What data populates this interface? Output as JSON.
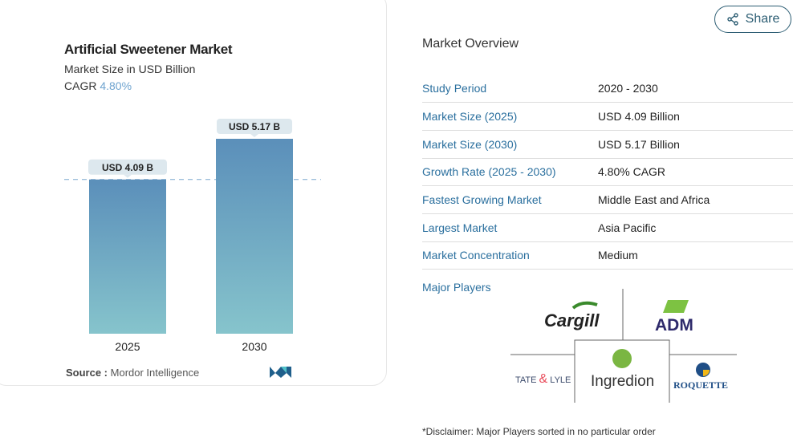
{
  "chart_data": {
    "type": "bar",
    "title": "Artificial Sweetener Market",
    "subtitle": "Market Size in USD Billion",
    "cagr_label": "CAGR",
    "cagr_value": "4.80%",
    "categories": [
      "2025",
      "2030"
    ],
    "values": [
      4.09,
      5.17
    ],
    "data_labels": [
      "USD 4.09 B",
      "USD 5.17 B"
    ],
    "ylim": [
      0,
      5.17
    ],
    "grid": false,
    "reference_line": "dashed at 2025 value"
  },
  "source": {
    "label": "Source :",
    "value": "Mordor Intelligence"
  },
  "share": {
    "label": "Share"
  },
  "overview": {
    "title": "Market Overview",
    "rows": [
      {
        "k": "Study Period",
        "v": "2020 - 2030"
      },
      {
        "k": "Market Size (2025)",
        "v": "USD 4.09 Billion"
      },
      {
        "k": "Market Size (2030)",
        "v": "USD 5.17 Billion"
      },
      {
        "k": "Growth Rate (2025 - 2030)",
        "v": "4.80% CAGR"
      },
      {
        "k": "Fastest Growing Market",
        "v": "Middle East and Africa"
      },
      {
        "k": "Largest Market",
        "v": "Asia Pacific"
      },
      {
        "k": "Market Concentration",
        "v": "Medium"
      }
    ],
    "major_players_label": "Major Players",
    "players": [
      "Cargill",
      "ADM",
      "Tate & Lyle",
      "Ingredion",
      "Roquette"
    ],
    "disclaimer": "*Disclaimer: Major Players sorted in no particular order"
  },
  "colors": {
    "bar_top": "#5b8fba",
    "bar_bottom": "#86c4cc",
    "accent": "#2a6f9e"
  }
}
